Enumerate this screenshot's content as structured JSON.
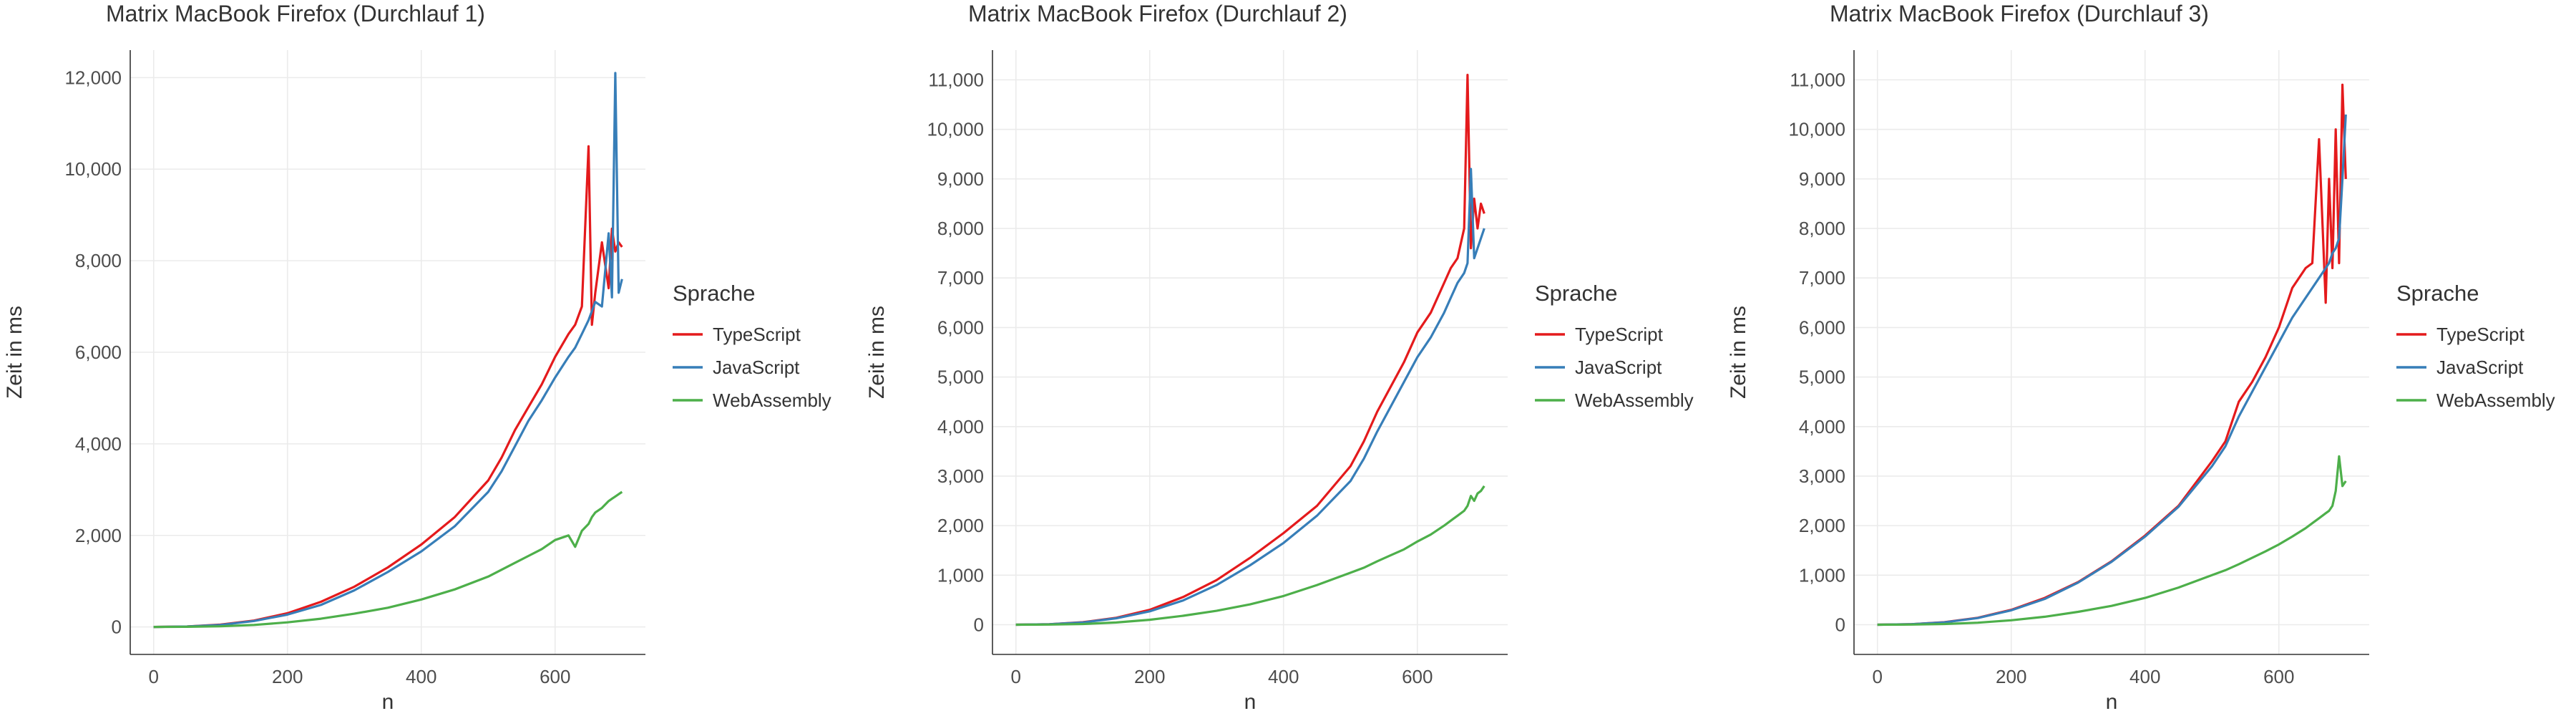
{
  "chart_data": [
    {
      "type": "line",
      "title": "Matrix MacBook Firefox (Durchlauf 1)",
      "xlabel": "n",
      "ylabel": "Zeit in ms",
      "xlim": [
        -35,
        735
      ],
      "ylim": [
        -600,
        12600
      ],
      "xticks": [
        0,
        200,
        400,
        600
      ],
      "xtick_labels": [
        "0",
        "200",
        "400",
        "600"
      ],
      "yticks": [
        0,
        2000,
        4000,
        6000,
        8000,
        10000,
        12000
      ],
      "ytick_labels": [
        "0",
        "2,000",
        "4,000",
        "6,000",
        "8,000",
        "10,000",
        "12,000"
      ],
      "grid": true,
      "legend": {
        "title": "Sprache",
        "position": "right"
      },
      "x": [
        0,
        50,
        100,
        150,
        200,
        250,
        300,
        350,
        400,
        450,
        500,
        520,
        540,
        560,
        580,
        600,
        620,
        630,
        640,
        650,
        655,
        660,
        670,
        680,
        685,
        690,
        695,
        700
      ],
      "series": [
        {
          "name": "TypeScript",
          "color": "#e41a1c",
          "values": [
            0,
            10,
            50,
            140,
            300,
            550,
            880,
            1300,
            1800,
            2400,
            3200,
            3700,
            4300,
            4800,
            5300,
            5900,
            6400,
            6600,
            7000,
            10500,
            6600,
            7300,
            8400,
            7400,
            8700,
            8200,
            8400,
            8300
          ]
        },
        {
          "name": "JavaScript",
          "color": "#377eb8",
          "values": [
            0,
            10,
            45,
            130,
            270,
            480,
            800,
            1200,
            1650,
            2200,
            2950,
            3400,
            3950,
            4500,
            4950,
            5450,
            5900,
            6100,
            6400,
            6700,
            6900,
            7100,
            7000,
            8600,
            7200,
            12100,
            7300,
            7600
          ]
        },
        {
          "name": "WebAssembly",
          "color": "#4daf4a",
          "values": [
            0,
            3,
            15,
            45,
            100,
            180,
            290,
            420,
            600,
            820,
            1100,
            1250,
            1400,
            1550,
            1700,
            1900,
            2000,
            1750,
            2100,
            2250,
            2400,
            2500,
            2600,
            2750,
            2800,
            2850,
            2900,
            2950
          ]
        }
      ]
    },
    {
      "type": "line",
      "title": "Matrix MacBook Firefox (Durchlauf 2)",
      "xlabel": "n",
      "ylabel": "Zeit in ms",
      "xlim": [
        -35,
        735
      ],
      "ylim": [
        -600,
        11600
      ],
      "xticks": [
        0,
        200,
        400,
        600
      ],
      "xtick_labels": [
        "0",
        "200",
        "400",
        "600"
      ],
      "yticks": [
        0,
        1000,
        2000,
        3000,
        4000,
        5000,
        6000,
        7000,
        8000,
        9000,
        10000,
        11000
      ],
      "ytick_labels": [
        "0",
        "1,000",
        "2,000",
        "3,000",
        "4,000",
        "5,000",
        "6,000",
        "7,000",
        "8,000",
        "9,000",
        "10,000",
        "11,000"
      ],
      "grid": true,
      "legend": {
        "title": "Sprache",
        "position": "right"
      },
      "x": [
        0,
        50,
        100,
        150,
        200,
        250,
        300,
        350,
        400,
        450,
        500,
        520,
        540,
        560,
        580,
        600,
        620,
        640,
        650,
        660,
        670,
        675,
        680,
        685,
        690,
        695,
        700
      ],
      "series": [
        {
          "name": "TypeScript",
          "color": "#e41a1c",
          "values": [
            0,
            10,
            50,
            140,
            300,
            560,
            900,
            1350,
            1850,
            2400,
            3200,
            3700,
            4300,
            4800,
            5300,
            5900,
            6300,
            6900,
            7200,
            7400,
            8000,
            11100,
            7600,
            8600,
            8000,
            8500,
            8300
          ]
        },
        {
          "name": "JavaScript",
          "color": "#377eb8",
          "values": [
            0,
            10,
            45,
            130,
            270,
            490,
            800,
            1200,
            1650,
            2200,
            2900,
            3350,
            3900,
            4400,
            4900,
            5400,
            5800,
            6300,
            6600,
            6900,
            7100,
            7300,
            9200,
            7400,
            7600,
            7800,
            8000
          ]
        },
        {
          "name": "WebAssembly",
          "color": "#4daf4a",
          "values": [
            0,
            3,
            15,
            45,
            100,
            180,
            280,
            410,
            580,
            800,
            1050,
            1150,
            1280,
            1400,
            1520,
            1680,
            1820,
            2000,
            2100,
            2200,
            2300,
            2400,
            2600,
            2500,
            2650,
            2700,
            2800
          ]
        }
      ]
    },
    {
      "type": "line",
      "title": "Matrix MacBook Firefox (Durchlauf 3)",
      "xlabel": "n",
      "ylabel": "Zeit in ms",
      "xlim": [
        -35,
        735
      ],
      "ylim": [
        -600,
        11600
      ],
      "xticks": [
        0,
        200,
        400,
        600
      ],
      "xtick_labels": [
        "0",
        "200",
        "400",
        "600"
      ],
      "yticks": [
        0,
        1000,
        2000,
        3000,
        4000,
        5000,
        6000,
        7000,
        8000,
        9000,
        10000,
        11000
      ],
      "ytick_labels": [
        "0",
        "1,000",
        "2,000",
        "3,000",
        "4,000",
        "5,000",
        "6,000",
        "7,000",
        "8,000",
        "9,000",
        "10,000",
        "11,000"
      ],
      "grid": true,
      "legend": {
        "title": "Sprache",
        "position": "right"
      },
      "x": [
        0,
        50,
        100,
        150,
        200,
        250,
        300,
        350,
        400,
        450,
        500,
        520,
        540,
        560,
        580,
        600,
        620,
        640,
        650,
        660,
        670,
        675,
        680,
        685,
        690,
        695,
        700
      ],
      "series": [
        {
          "name": "TypeScript",
          "color": "#e41a1c",
          "values": [
            0,
            10,
            50,
            140,
            300,
            540,
            860,
            1280,
            1800,
            2400,
            3300,
            3700,
            4500,
            4900,
            5400,
            6000,
            6800,
            7200,
            7300,
            9800,
            6500,
            9000,
            7200,
            10000,
            7300,
            10900,
            9000
          ]
        },
        {
          "name": "JavaScript",
          "color": "#377eb8",
          "values": [
            0,
            10,
            48,
            135,
            290,
            520,
            850,
            1270,
            1780,
            2380,
            3200,
            3600,
            4200,
            4700,
            5200,
            5700,
            6200,
            6600,
            6800,
            7000,
            7200,
            7300,
            7500,
            7600,
            7800,
            9000,
            10300
          ]
        },
        {
          "name": "WebAssembly",
          "color": "#4daf4a",
          "values": [
            0,
            3,
            14,
            40,
            90,
            160,
            260,
            380,
            540,
            750,
            1000,
            1100,
            1220,
            1350,
            1480,
            1620,
            1780,
            1950,
            2050,
            2150,
            2250,
            2300,
            2400,
            2700,
            3400,
            2800,
            2900
          ]
        }
      ]
    }
  ]
}
